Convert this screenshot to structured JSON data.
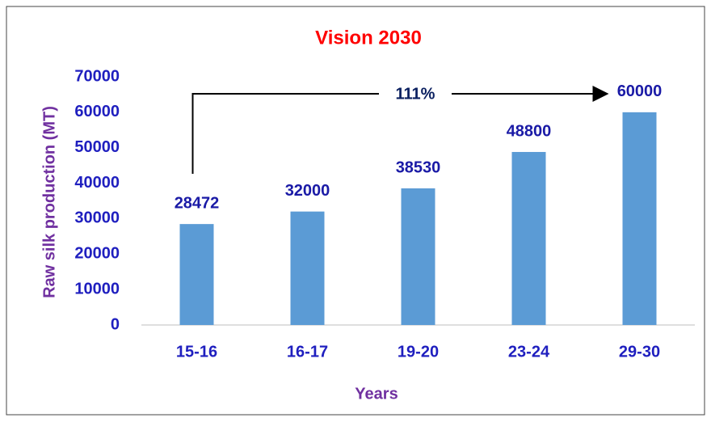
{
  "chart_data": {
    "type": "bar",
    "title": "Vision 2030",
    "x_label": "Years",
    "y_label": "Raw silk production (MT)",
    "categories": [
      "15-16",
      "16-17",
      "19-20",
      "23-24",
      "29-30"
    ],
    "values": [
      28472,
      32000,
      38530,
      48800,
      60000
    ],
    "color": "#5b9bd5",
    "ylim": [
      0,
      70000
    ],
    "yticks": [
      0,
      10000,
      20000,
      30000,
      40000,
      50000,
      60000,
      70000
    ],
    "grid": false,
    "annotation": "111%"
  }
}
